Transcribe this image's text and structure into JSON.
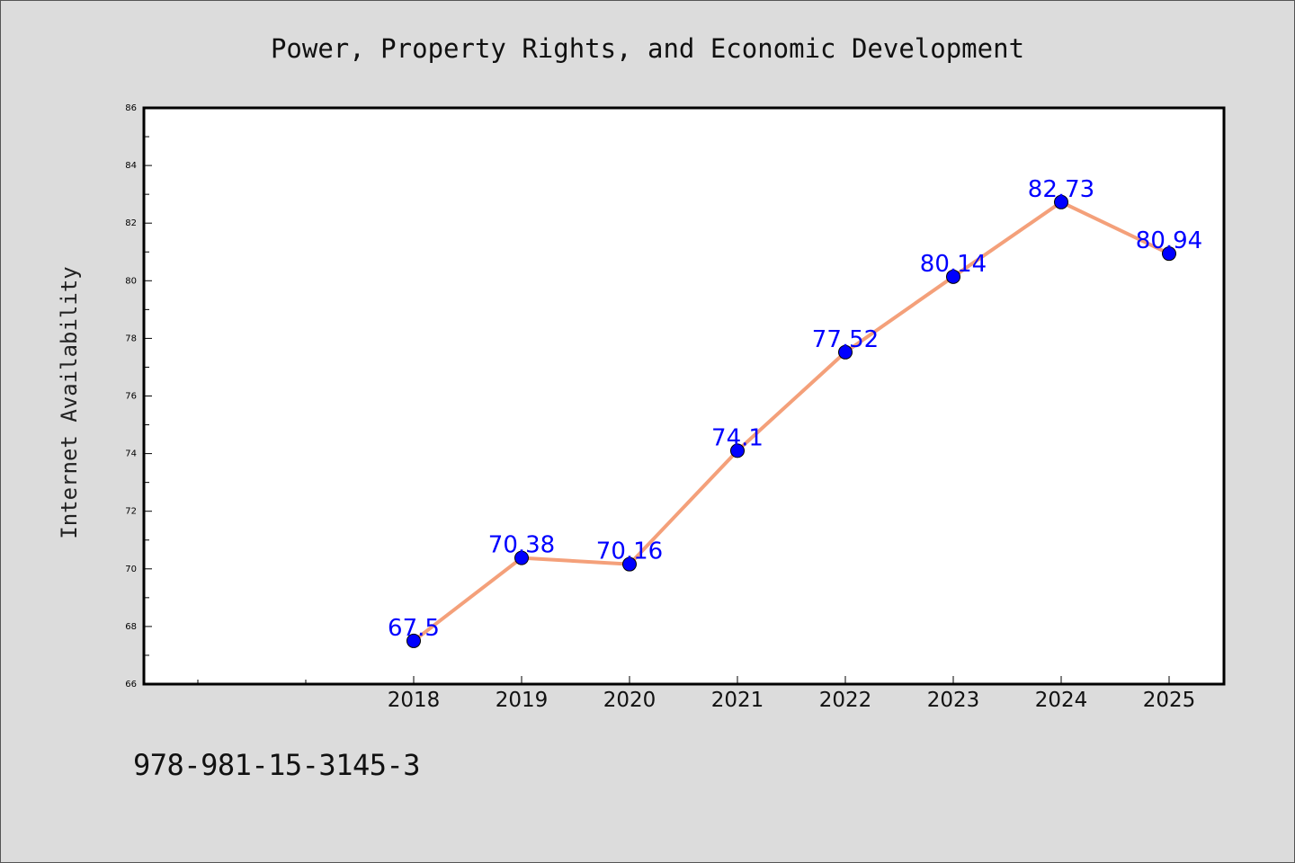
{
  "chart_data": {
    "type": "line",
    "title": "Power, Property Rights, and Economic Development",
    "xlabel": "",
    "ylabel": "Internet Availability",
    "categories": [
      "2018",
      "2019",
      "2020",
      "2021",
      "2022",
      "2023",
      "2024",
      "2025"
    ],
    "series": [
      {
        "values": [
          67.5,
          70.38,
          70.16,
          74.1,
          77.52,
          80.14,
          82.73,
          80.94
        ],
        "data_labels": [
          "67.5",
          "70.38",
          "70.16",
          "74.1",
          "77.52",
          "80.14",
          "82.73",
          "80.94"
        ],
        "line_color": "#f4a07a",
        "marker_color": "#0000ff"
      }
    ],
    "ylim": [
      66,
      86
    ],
    "yticks": [
      "66",
      "68",
      "70",
      "72",
      "74",
      "76",
      "78",
      "80",
      "82",
      "84",
      "86"
    ],
    "grid": false,
    "label_color": "#0000ff"
  },
  "footer": {
    "code": "978-981-15-3145-3"
  },
  "colors": {
    "background": "#dcdcdc",
    "plot_area": "#ffffff"
  }
}
